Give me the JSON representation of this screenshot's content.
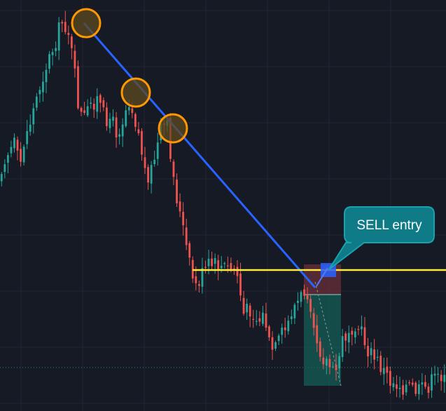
{
  "chart_data": {
    "type": "candlestick",
    "title": "",
    "xlabel": "",
    "ylabel": "",
    "grid": true,
    "background_color": "#161a25",
    "colors": {
      "up": "#26a69a",
      "down": "#ef5350",
      "trendline": "#2962ff",
      "horizontal_line": "#ffeb3b",
      "touch_circle_stroke": "#ff9800",
      "touch_circle_fill": "#5d4a1f",
      "callout_fill": "#0f7b86",
      "callout_stroke": "#17a2b0",
      "stop_zone": "#6b2f3a",
      "target_zone": "#145e57",
      "entry_marker": "#2962ff"
    },
    "candle_count": 140,
    "seed": 17,
    "price_path": [
      [
        0,
        255
      ],
      [
        8,
        225
      ],
      [
        16,
        215
      ],
      [
        24,
        205
      ],
      [
        30,
        245
      ],
      [
        36,
        205
      ],
      [
        44,
        180
      ],
      [
        52,
        150
      ],
      [
        60,
        120
      ],
      [
        68,
        95
      ],
      [
        76,
        75
      ],
      [
        84,
        50
      ],
      [
        92,
        30
      ],
      [
        100,
        45
      ],
      [
        108,
        100
      ],
      [
        116,
        165
      ],
      [
        124,
        170
      ],
      [
        132,
        150
      ],
      [
        140,
        140
      ],
      [
        150,
        165
      ],
      [
        160,
        170
      ],
      [
        170,
        190
      ],
      [
        178,
        170
      ],
      [
        186,
        140
      ],
      [
        194,
        165
      ],
      [
        202,
        200
      ],
      [
        210,
        250
      ],
      [
        218,
        245
      ],
      [
        226,
        215
      ],
      [
        234,
        180
      ],
      [
        242,
        185
      ],
      [
        250,
        255
      ],
      [
        258,
        300
      ],
      [
        266,
        340
      ],
      [
        274,
        385
      ],
      [
        282,
        410
      ],
      [
        290,
        395
      ],
      [
        300,
        380
      ],
      [
        310,
        380
      ],
      [
        320,
        382
      ],
      [
        330,
        385
      ],
      [
        340,
        385
      ],
      [
        350,
        450
      ],
      [
        360,
        440
      ],
      [
        370,
        460
      ],
      [
        380,
        450
      ],
      [
        388,
        500
      ],
      [
        396,
        500
      ],
      [
        404,
        480
      ],
      [
        412,
        470
      ],
      [
        420,
        440
      ],
      [
        430,
        430
      ],
      [
        440,
        410
      ],
      [
        448,
        440
      ],
      [
        456,
        490
      ],
      [
        464,
        510
      ],
      [
        472,
        520
      ],
      [
        480,
        540
      ],
      [
        490,
        490
      ],
      [
        500,
        470
      ],
      [
        510,
        460
      ],
      [
        520,
        480
      ],
      [
        530,
        505
      ],
      [
        540,
        515
      ],
      [
        550,
        530
      ],
      [
        560,
        545
      ],
      [
        570,
        548
      ],
      [
        580,
        552
      ],
      [
        590,
        555
      ],
      [
        600,
        560
      ],
      [
        610,
        555
      ],
      [
        620,
        545
      ],
      [
        637,
        530
      ]
    ],
    "trendline": {
      "points": [
        [
          120,
          33
        ],
        [
          450,
          410
        ]
      ]
    },
    "horizontal_line": {
      "y": 385,
      "x_start": 275
    },
    "touch_points": [
      [
        123,
        33
      ],
      [
        194,
        132
      ],
      [
        247,
        183
      ]
    ],
    "dotted_line": {
      "y": 524
    },
    "position": {
      "side": "short",
      "entry_y": 385,
      "stop_y": 420,
      "target_y": 550,
      "x_start": 434,
      "x_end": 487
    },
    "annotation": {
      "text": "SELL entry"
    }
  }
}
